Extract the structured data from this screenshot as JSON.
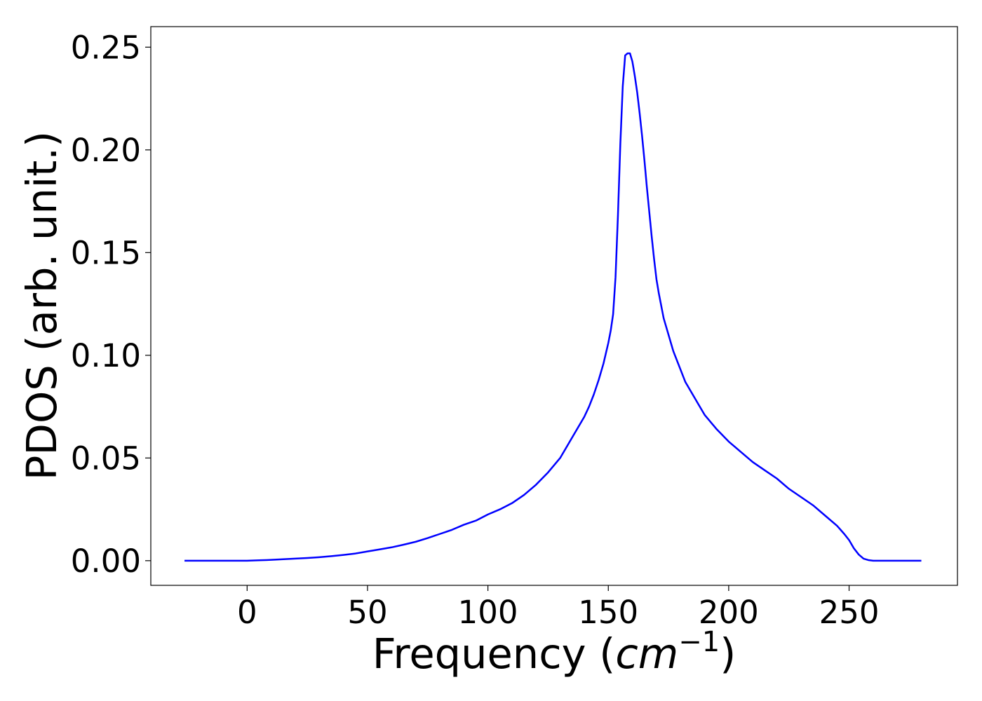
{
  "chart_data": {
    "type": "line",
    "title": "",
    "xlabel": "Frequency (cm⁻¹)",
    "xlabel_parts": {
      "prefix": "Frequency (",
      "unit": "cm",
      "exponent": "−1",
      "suffix": ")"
    },
    "ylabel": "PDOS (arb. unit.)",
    "xlim": [
      -40,
      295
    ],
    "ylim": [
      -0.012,
      0.26
    ],
    "xticks": [
      0,
      50,
      100,
      150,
      200,
      250
    ],
    "xtick_labels": [
      "0",
      "50",
      "100",
      "150",
      "200",
      "250"
    ],
    "yticks": [
      0.0,
      0.05,
      0.1,
      0.15,
      0.2,
      0.25
    ],
    "ytick_labels": [
      "0.00",
      "0.05",
      "0.10",
      "0.15",
      "0.20",
      "0.25"
    ],
    "grid": false,
    "legend": null,
    "series": [
      {
        "color": "#0000ff",
        "x": [
          -26,
          0,
          5,
          10,
          15,
          20,
          25,
          30,
          35,
          40,
          45,
          50,
          55,
          60,
          65,
          70,
          75,
          80,
          85,
          90,
          95,
          100,
          105,
          110,
          115,
          120,
          125,
          130,
          135,
          140,
          142,
          144,
          146,
          148,
          150,
          151,
          152,
          153,
          154,
          155,
          156,
          157,
          158,
          159,
          160,
          161,
          162,
          163,
          164,
          165,
          166,
          167,
          168,
          169,
          170,
          171,
          172,
          173,
          174,
          175,
          176,
          177,
          178,
          180,
          182,
          185,
          188,
          190,
          195,
          200,
          205,
          210,
          215,
          220,
          225,
          230,
          235,
          240,
          245,
          248,
          250,
          252,
          254,
          256,
          258,
          260,
          262,
          265,
          270,
          280
        ],
        "y": [
          0.0,
          0.0,
          0.0002,
          0.0004,
          0.0007,
          0.001,
          0.0013,
          0.0017,
          0.0022,
          0.0028,
          0.0035,
          0.0045,
          0.0055,
          0.0065,
          0.0078,
          0.0092,
          0.011,
          0.013,
          0.015,
          0.0175,
          0.0195,
          0.0225,
          0.025,
          0.028,
          0.032,
          0.037,
          0.043,
          0.05,
          0.06,
          0.07,
          0.075,
          0.081,
          0.088,
          0.096,
          0.106,
          0.112,
          0.12,
          0.138,
          0.168,
          0.203,
          0.231,
          0.246,
          0.247,
          0.247,
          0.243,
          0.236,
          0.228,
          0.218,
          0.207,
          0.195,
          0.182,
          0.17,
          0.158,
          0.147,
          0.137,
          0.13,
          0.124,
          0.118,
          0.114,
          0.11,
          0.106,
          0.102,
          0.099,
          0.093,
          0.087,
          0.081,
          0.075,
          0.071,
          0.064,
          0.058,
          0.053,
          0.048,
          0.044,
          0.04,
          0.035,
          0.031,
          0.027,
          0.022,
          0.017,
          0.013,
          0.01,
          0.006,
          0.003,
          0.001,
          0.0003,
          0.0,
          0.0,
          0.0,
          0.0,
          0.0
        ]
      }
    ]
  }
}
